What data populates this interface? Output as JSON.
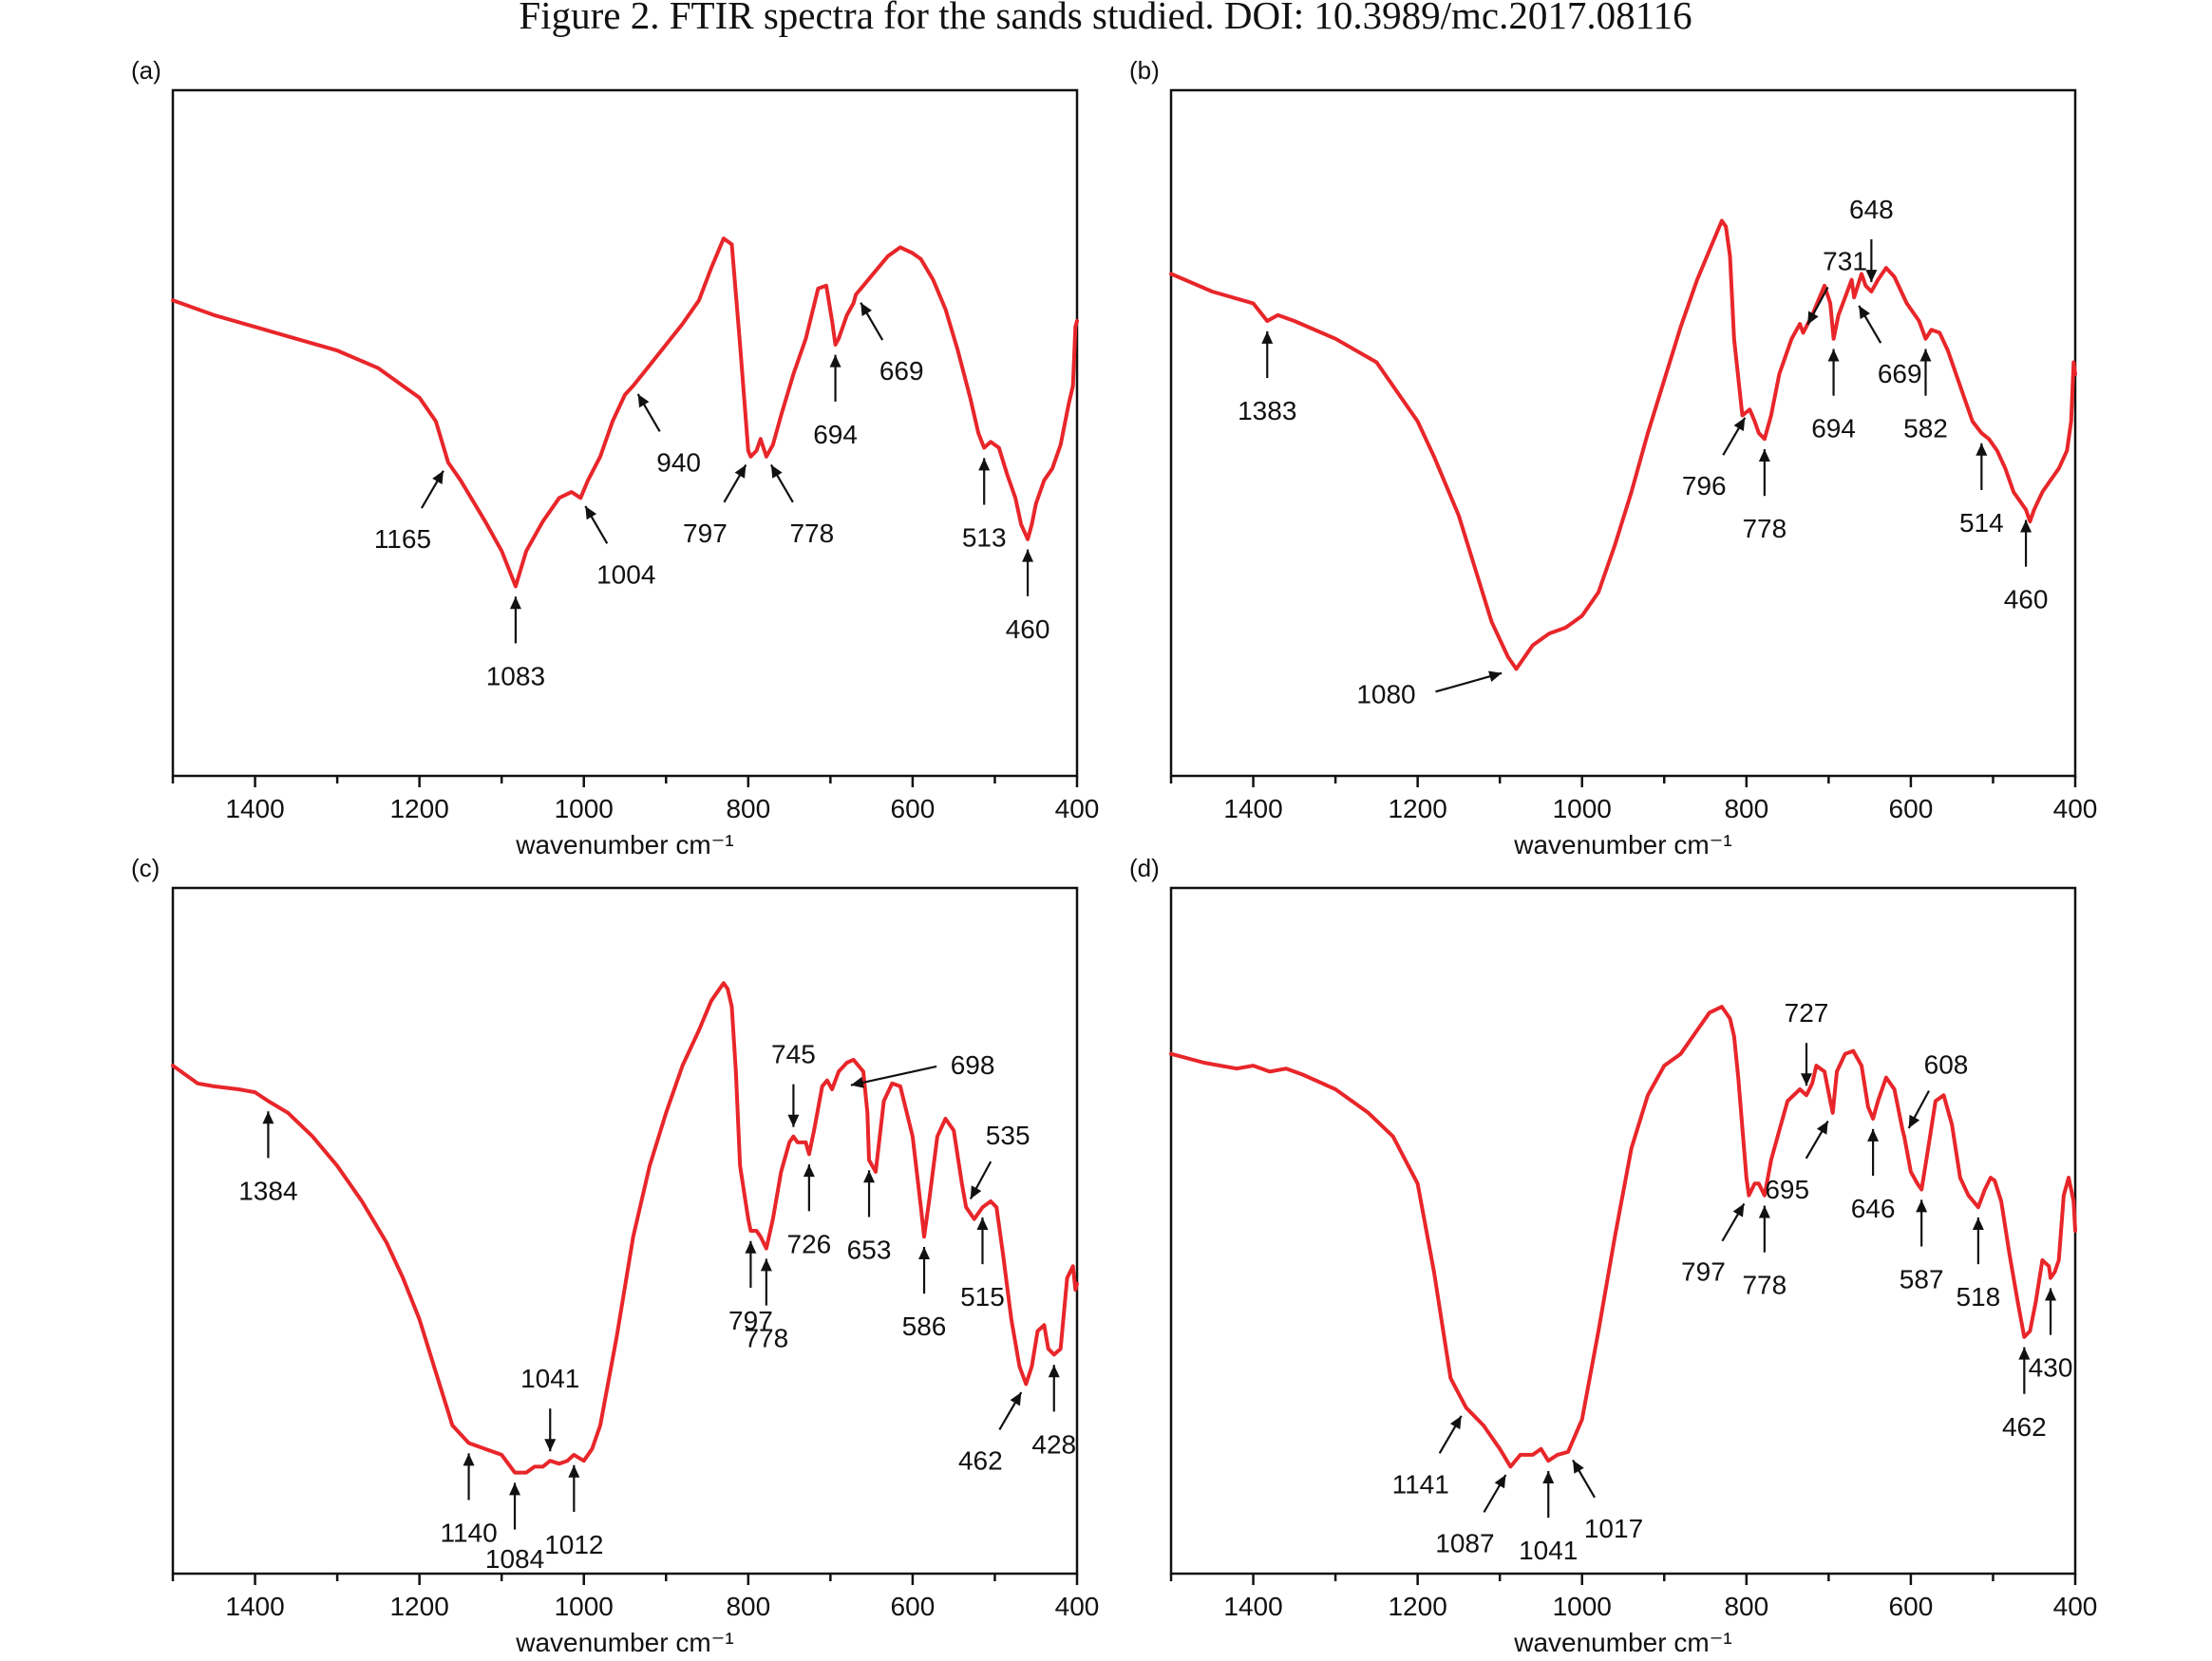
{
  "figure_title": "Figure 2. FTIR spectra for the sands studied. DOI: 10.3989/mc.2017.08116",
  "colors": {
    "spectrum": "#e8262a",
    "axes": "#111111"
  },
  "chart_data": [
    {
      "type": "line",
      "panel": "(a)",
      "xlabel": "wavenumber cm⁻¹",
      "ylabel": "",
      "xlim": [
        1500,
        400
      ],
      "x_reversed": true,
      "y_units": "arbitrary transmittance (relative 0–1)",
      "ylim": [
        0,
        1
      ],
      "xticks": [
        1400,
        1200,
        1000,
        800,
        600,
        400
      ],
      "grid": false,
      "series": [
        {
          "x": [
            1500,
            1450,
            1400,
            1350,
            1300,
            1250,
            1200,
            1180,
            1165,
            1150,
            1120,
            1100,
            1083,
            1070,
            1050,
            1030,
            1015,
            1004,
            995,
            980,
            965,
            950,
            940,
            920,
            900,
            880,
            860,
            845,
            830,
            820,
            810,
            800,
            797,
            790,
            785,
            778,
            770,
            760,
            745,
            730,
            715,
            705,
            698,
            694,
            690,
            680,
            672,
            669,
            660,
            645,
            630,
            615,
            600,
            590,
            575,
            560,
            545,
            530,
            520,
            513,
            505,
            495,
            485,
            475,
            468,
            460,
            455,
            450,
            440,
            430,
            420,
            410,
            405,
            402,
            400
          ],
          "y": [
            0.725,
            0.7,
            0.68,
            0.66,
            0.64,
            0.61,
            0.56,
            0.52,
            0.45,
            0.42,
            0.35,
            0.3,
            0.24,
            0.3,
            0.35,
            0.39,
            0.4,
            0.39,
            0.42,
            0.46,
            0.52,
            0.565,
            0.58,
            0.615,
            0.65,
            0.685,
            0.725,
            0.78,
            0.83,
            0.82,
            0.65,
            0.47,
            0.46,
            0.47,
            0.49,
            0.46,
            0.48,
            0.53,
            0.6,
            0.66,
            0.745,
            0.75,
            0.69,
            0.65,
            0.66,
            0.7,
            0.72,
            0.735,
            0.75,
            0.775,
            0.8,
            0.815,
            0.805,
            0.795,
            0.76,
            0.71,
            0.64,
            0.56,
            0.5,
            0.475,
            0.485,
            0.475,
            0.43,
            0.39,
            0.345,
            0.32,
            0.345,
            0.38,
            0.42,
            0.44,
            0.48,
            0.55,
            0.58,
            0.68,
            0.69
          ]
        }
      ],
      "annotations": [
        {
          "label": "1165",
          "x": 1165,
          "dir": "ne"
        },
        {
          "label": "1083",
          "x": 1083,
          "dir": "up"
        },
        {
          "label": "1004",
          "x": 1004,
          "dir": "nw"
        },
        {
          "label": "940",
          "x": 940,
          "dir": "nw"
        },
        {
          "label": "797",
          "x": 797,
          "dir": "ne"
        },
        {
          "label": "778",
          "x": 778,
          "dir": "nw"
        },
        {
          "label": "694",
          "x": 694,
          "dir": "up"
        },
        {
          "label": "669",
          "x": 669,
          "dir": "nw"
        },
        {
          "label": "513",
          "x": 513,
          "dir": "up"
        },
        {
          "label": "460",
          "x": 460,
          "dir": "up"
        }
      ]
    },
    {
      "type": "line",
      "panel": "(b)",
      "xlabel": "wavenumber cm⁻¹",
      "ylabel": "",
      "xlim": [
        1500,
        400
      ],
      "x_reversed": true,
      "y_units": "arbitrary transmittance (relative 0–1)",
      "ylim": [
        0,
        1
      ],
      "xticks": [
        1400,
        1200,
        1000,
        800,
        600,
        400
      ],
      "grid": false,
      "series": [
        {
          "x": [
            1500,
            1450,
            1400,
            1383,
            1370,
            1350,
            1300,
            1250,
            1200,
            1180,
            1150,
            1130,
            1110,
            1090,
            1080,
            1060,
            1040,
            1020,
            1000,
            980,
            960,
            940,
            920,
            900,
            880,
            860,
            845,
            830,
            825,
            820,
            815,
            805,
            796,
            790,
            785,
            778,
            770,
            760,
            745,
            735,
            731,
            720,
            705,
            698,
            694,
            688,
            680,
            672,
            669,
            660,
            655,
            648,
            640,
            630,
            620,
            605,
            590,
            582,
            575,
            565,
            555,
            540,
            525,
            514,
            505,
            495,
            485,
            475,
            460,
            455,
            450,
            440,
            430,
            420,
            410,
            405,
            402,
            400
          ],
          "y": [
            0.77,
            0.74,
            0.72,
            0.69,
            0.7,
            0.69,
            0.66,
            0.62,
            0.52,
            0.46,
            0.36,
            0.27,
            0.18,
            0.12,
            0.1,
            0.14,
            0.16,
            0.17,
            0.19,
            0.23,
            0.31,
            0.4,
            0.5,
            0.59,
            0.68,
            0.76,
            0.81,
            0.86,
            0.85,
            0.8,
            0.66,
            0.53,
            0.54,
            0.52,
            0.5,
            0.49,
            0.53,
            0.6,
            0.66,
            0.685,
            0.67,
            0.7,
            0.75,
            0.72,
            0.66,
            0.7,
            0.73,
            0.76,
            0.73,
            0.77,
            0.75,
            0.74,
            0.76,
            0.78,
            0.765,
            0.72,
            0.69,
            0.66,
            0.675,
            0.67,
            0.64,
            0.58,
            0.52,
            0.5,
            0.49,
            0.47,
            0.44,
            0.4,
            0.37,
            0.35,
            0.37,
            0.4,
            0.42,
            0.44,
            0.47,
            0.52,
            0.62,
            0.6
          ]
        }
      ],
      "annotations": [
        {
          "label": "1383",
          "x": 1383,
          "dir": "up"
        },
        {
          "label": "1080",
          "x": 1080,
          "dir": "ne-flat"
        },
        {
          "label": "796",
          "x": 796,
          "dir": "ne"
        },
        {
          "label": "778",
          "x": 778,
          "dir": "up"
        },
        {
          "label": "731",
          "x": 731,
          "dir": "sw"
        },
        {
          "label": "694",
          "x": 694,
          "dir": "up"
        },
        {
          "label": "669",
          "x": 669,
          "dir": "nw"
        },
        {
          "label": "648",
          "x": 648,
          "dir": "down"
        },
        {
          "label": "582",
          "x": 582,
          "dir": "up"
        },
        {
          "label": "514",
          "x": 514,
          "dir": "up"
        },
        {
          "label": "460",
          "x": 460,
          "dir": "up"
        }
      ]
    },
    {
      "type": "line",
      "panel": "(c)",
      "xlabel": "wavenumber cm⁻¹",
      "ylabel": "",
      "xlim": [
        1500,
        400
      ],
      "x_reversed": true,
      "y_units": "arbitrary transmittance (relative 0–1)",
      "ylim": [
        0,
        1
      ],
      "xticks": [
        1400,
        1200,
        1000,
        800,
        600,
        400
      ],
      "grid": false,
      "series": [
        {
          "x": [
            1500,
            1470,
            1450,
            1420,
            1400,
            1384,
            1360,
            1330,
            1300,
            1270,
            1240,
            1220,
            1200,
            1180,
            1160,
            1140,
            1120,
            1100,
            1084,
            1070,
            1060,
            1050,
            1041,
            1030,
            1020,
            1012,
            1000,
            990,
            980,
            960,
            940,
            920,
            900,
            880,
            860,
            845,
            830,
            825,
            820,
            815,
            810,
            800,
            797,
            790,
            785,
            778,
            770,
            760,
            750,
            745,
            740,
            730,
            726,
            720,
            710,
            704,
            698,
            690,
            680,
            672,
            660,
            655,
            653,
            645,
            635,
            625,
            615,
            600,
            590,
            586,
            580,
            570,
            560,
            550,
            540,
            535,
            525,
            515,
            505,
            498,
            490,
            480,
            470,
            462,
            455,
            448,
            440,
            435,
            428,
            420,
            412,
            405,
            402,
            400
          ],
          "y": [
            0.78,
            0.75,
            0.745,
            0.74,
            0.735,
            0.72,
            0.7,
            0.66,
            0.61,
            0.55,
            0.48,
            0.42,
            0.35,
            0.26,
            0.17,
            0.14,
            0.13,
            0.12,
            0.09,
            0.09,
            0.1,
            0.1,
            0.11,
            0.105,
            0.11,
            0.12,
            0.11,
            0.13,
            0.17,
            0.32,
            0.49,
            0.61,
            0.7,
            0.78,
            0.84,
            0.89,
            0.92,
            0.91,
            0.88,
            0.77,
            0.61,
            0.52,
            0.5,
            0.5,
            0.49,
            0.47,
            0.52,
            0.6,
            0.65,
            0.66,
            0.65,
            0.65,
            0.63,
            0.67,
            0.745,
            0.755,
            0.74,
            0.77,
            0.785,
            0.79,
            0.77,
            0.7,
            0.62,
            0.6,
            0.72,
            0.75,
            0.745,
            0.66,
            0.54,
            0.49,
            0.55,
            0.66,
            0.69,
            0.67,
            0.58,
            0.54,
            0.52,
            0.54,
            0.55,
            0.54,
            0.46,
            0.35,
            0.27,
            0.24,
            0.27,
            0.33,
            0.34,
            0.3,
            0.29,
            0.3,
            0.42,
            0.44,
            0.4,
            0.41
          ]
        }
      ],
      "annotations": [
        {
          "label": "1384",
          "x": 1384,
          "dir": "up"
        },
        {
          "label": "1140",
          "x": 1140,
          "dir": "up"
        },
        {
          "label": "1084",
          "x": 1084,
          "dir": "up"
        },
        {
          "label": "1041",
          "x": 1041,
          "dir": "down"
        },
        {
          "label": "1012",
          "x": 1012,
          "dir": "up"
        },
        {
          "label": "797",
          "x": 797,
          "dir": "up"
        },
        {
          "label": "778",
          "x": 778,
          "dir": "up"
        },
        {
          "label": "745",
          "x": 745,
          "dir": "down"
        },
        {
          "label": "726",
          "x": 726,
          "dir": "up"
        },
        {
          "label": "698",
          "x": 698,
          "dir": "w-long"
        },
        {
          "label": "653",
          "x": 653,
          "dir": "up"
        },
        {
          "label": "586",
          "x": 586,
          "dir": "up"
        },
        {
          "label": "535",
          "x": 535,
          "dir": "sw"
        },
        {
          "label": "515",
          "x": 515,
          "dir": "up"
        },
        {
          "label": "462",
          "x": 462,
          "dir": "ne"
        },
        {
          "label": "428",
          "x": 428,
          "dir": "up"
        }
      ]
    },
    {
      "type": "line",
      "panel": "(d)",
      "xlabel": "wavenumber cm⁻¹",
      "ylabel": "",
      "xlim": [
        1500,
        400
      ],
      "x_reversed": true,
      "y_units": "arbitrary transmittance (relative 0–1)",
      "ylim": [
        0,
        1
      ],
      "xticks": [
        1400,
        1200,
        1000,
        800,
        600,
        400
      ],
      "grid": false,
      "series": [
        {
          "x": [
            1500,
            1460,
            1440,
            1420,
            1400,
            1380,
            1360,
            1340,
            1300,
            1260,
            1230,
            1200,
            1180,
            1160,
            1141,
            1120,
            1100,
            1087,
            1075,
            1060,
            1050,
            1041,
            1030,
            1017,
            1000,
            980,
            960,
            940,
            920,
            900,
            880,
            860,
            845,
            830,
            820,
            815,
            810,
            800,
            797,
            790,
            785,
            778,
            770,
            760,
            750,
            735,
            727,
            720,
            715,
            705,
            698,
            695,
            690,
            680,
            670,
            660,
            652,
            646,
            640,
            630,
            620,
            610,
            608,
            600,
            592,
            587,
            580,
            570,
            560,
            550,
            540,
            530,
            518,
            510,
            503,
            498,
            490,
            480,
            470,
            462,
            455,
            448,
            440,
            432,
            430,
            425,
            420,
            414,
            408,
            402,
            400
          ],
          "y": [
            0.8,
            0.785,
            0.78,
            0.775,
            0.78,
            0.77,
            0.775,
            0.765,
            0.74,
            0.7,
            0.66,
            0.58,
            0.43,
            0.25,
            0.2,
            0.17,
            0.13,
            0.1,
            0.12,
            0.12,
            0.13,
            0.11,
            0.12,
            0.125,
            0.18,
            0.33,
            0.49,
            0.64,
            0.73,
            0.78,
            0.8,
            0.84,
            0.87,
            0.88,
            0.86,
            0.83,
            0.76,
            0.59,
            0.56,
            0.58,
            0.58,
            0.56,
            0.62,
            0.67,
            0.72,
            0.74,
            0.73,
            0.75,
            0.78,
            0.77,
            0.72,
            0.7,
            0.77,
            0.8,
            0.805,
            0.78,
            0.71,
            0.69,
            0.72,
            0.76,
            0.74,
            0.67,
            0.66,
            0.6,
            0.58,
            0.57,
            0.63,
            0.72,
            0.73,
            0.68,
            0.59,
            0.56,
            0.54,
            0.57,
            0.59,
            0.585,
            0.55,
            0.46,
            0.38,
            0.32,
            0.33,
            0.38,
            0.45,
            0.44,
            0.42,
            0.43,
            0.45,
            0.56,
            0.59,
            0.55,
            0.5
          ]
        }
      ],
      "annotations": [
        {
          "label": "1141",
          "x": 1141,
          "dir": "ne"
        },
        {
          "label": "1087",
          "x": 1087,
          "dir": "ne"
        },
        {
          "label": "1041",
          "x": 1041,
          "dir": "up"
        },
        {
          "label": "1017",
          "x": 1017,
          "dir": "nw"
        },
        {
          "label": "797",
          "x": 797,
          "dir": "ne"
        },
        {
          "label": "778",
          "x": 778,
          "dir": "up"
        },
        {
          "label": "727",
          "x": 727,
          "dir": "down"
        },
        {
          "label": "695",
          "x": 695,
          "dir": "ne"
        },
        {
          "label": "646",
          "x": 646,
          "dir": "up"
        },
        {
          "label": "608",
          "x": 608,
          "dir": "sw"
        },
        {
          "label": "587",
          "x": 587,
          "dir": "up"
        },
        {
          "label": "518",
          "x": 518,
          "dir": "up"
        },
        {
          "label": "462",
          "x": 462,
          "dir": "up"
        },
        {
          "label": "430",
          "x": 430,
          "dir": "up"
        }
      ]
    }
  ]
}
